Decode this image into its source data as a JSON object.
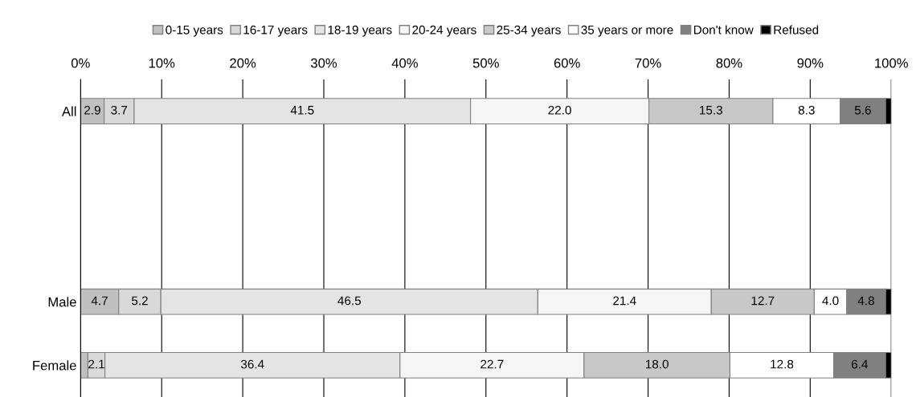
{
  "chart_data": {
    "type": "bar",
    "orientation": "horizontal",
    "stacked": true,
    "legend": "top",
    "grid": "x",
    "categories": [
      "All",
      null,
      null,
      "Male",
      "Female"
    ],
    "xlim": [
      0,
      100
    ],
    "xticks": [
      {
        "value": 0,
        "label": "0%"
      },
      {
        "value": 10,
        "label": "10%"
      },
      {
        "value": 20,
        "label": "20%"
      },
      {
        "value": 30,
        "label": "30%"
      },
      {
        "value": 40,
        "label": "40%"
      },
      {
        "value": 50,
        "label": "50%"
      },
      {
        "value": 60,
        "label": "60%"
      },
      {
        "value": 70,
        "label": "70%"
      },
      {
        "value": 80,
        "label": "80%"
      },
      {
        "value": 90,
        "label": "90%"
      },
      {
        "value": 100,
        "label": "100%"
      }
    ],
    "series": [
      {
        "name": "0-15 years",
        "color": "#c0c0c0",
        "values": [
          2.9,
          null,
          null,
          4.7,
          0.9
        ],
        "value_labels": [
          "2.9",
          null,
          null,
          "4.7",
          null
        ]
      },
      {
        "name": "16-17 years",
        "color": "#d9d9d9",
        "values": [
          3.7,
          null,
          null,
          5.2,
          2.1
        ],
        "value_labels": [
          "3.7",
          null,
          null,
          "5.2",
          "2.1"
        ]
      },
      {
        "name": "18-19 years",
        "color": "#e4e4e4",
        "values": [
          41.5,
          null,
          null,
          46.5,
          36.4
        ],
        "value_labels": [
          "41.5",
          null,
          null,
          "46.5",
          "36.4"
        ]
      },
      {
        "name": "20-24 years",
        "color": "#f6f6f6",
        "values": [
          22.0,
          null,
          null,
          21.4,
          22.7
        ],
        "value_labels": [
          "22.0",
          null,
          null,
          "21.4",
          "22.7"
        ]
      },
      {
        "name": "25-34 years",
        "color": "#c8c8c8",
        "values": [
          15.3,
          null,
          null,
          12.7,
          18.0
        ],
        "value_labels": [
          "15.3",
          null,
          null,
          "12.7",
          "18.0"
        ]
      },
      {
        "name": "35 years or more",
        "color": "#ffffff",
        "values": [
          8.3,
          null,
          null,
          4.0,
          12.8
        ],
        "value_labels": [
          "8.3",
          null,
          null,
          "4.0",
          "12.8"
        ]
      },
      {
        "name": "Don't know",
        "color": "#808080",
        "values": [
          5.6,
          null,
          null,
          4.8,
          6.4
        ],
        "value_labels": [
          "5.6",
          null,
          null,
          "4.8",
          "6.4"
        ]
      },
      {
        "name": "Refused",
        "color": "#000000",
        "values": [
          0.7,
          null,
          null,
          0.7,
          0.7
        ],
        "value_labels": [
          null,
          null,
          null,
          null,
          null
        ]
      }
    ]
  }
}
